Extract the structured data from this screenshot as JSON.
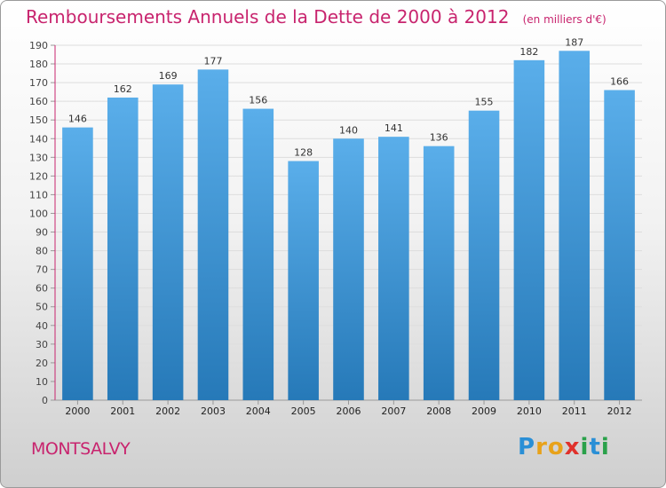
{
  "header": {
    "title": "Remboursements Annuels de la Dette de 2000 à 2012",
    "unit": "(en milliers d'€)"
  },
  "footer": {
    "commune": "MONTSALVY",
    "brand": "Proxiti",
    "brand_letters": [
      {
        "ch": "P",
        "color": "#2a8fd6"
      },
      {
        "ch": "r",
        "color": "#e8a21a"
      },
      {
        "ch": "o",
        "color": "#e8a21a"
      },
      {
        "ch": "x",
        "color": "#e0312b"
      },
      {
        "ch": "i",
        "color": "#2aa14a"
      },
      {
        "ch": "t",
        "color": "#2a8fd6"
      },
      {
        "ch": "i",
        "color": "#2aa14a"
      }
    ]
  },
  "colors": {
    "title": "#c8246e",
    "bar_top": "#5aaeea",
    "bar_bottom": "#2679b8",
    "axis": "#999999",
    "grid": "#dddddd",
    "y_axis_line": "#c8246e"
  },
  "chart_data": {
    "type": "bar",
    "title": "Remboursements Annuels de la Dette de 2000 à 2012",
    "subtitle": "(en milliers d'€)",
    "xlabel": "",
    "ylabel": "",
    "ylim": [
      0,
      190
    ],
    "ytick_step": 10,
    "grid": true,
    "categories": [
      "2000",
      "2001",
      "2002",
      "2003",
      "2004",
      "2005",
      "2006",
      "2007",
      "2008",
      "2009",
      "2010",
      "2011",
      "2012"
    ],
    "values": [
      146,
      162,
      169,
      177,
      156,
      128,
      140,
      141,
      136,
      155,
      182,
      187,
      166
    ]
  }
}
